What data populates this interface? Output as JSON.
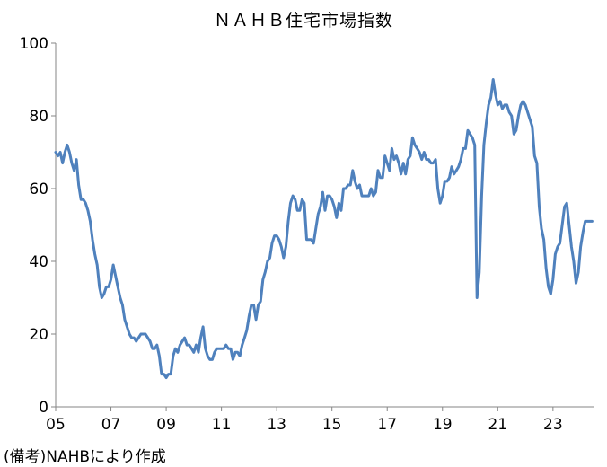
{
  "chart_data": {
    "type": "line",
    "title": "ＮＡＨＢ住宅市場指数",
    "note": "(備考)NAHBにより作成",
    "xlabel": "",
    "ylabel": "",
    "ylim": [
      0,
      100
    ],
    "yticks": [
      "0",
      "20",
      "40",
      "60",
      "80",
      "100"
    ],
    "xticks": [
      {
        "label": "05",
        "year": 2005
      },
      {
        "label": "07",
        "year": 2007
      },
      {
        "label": "09",
        "year": 2009
      },
      {
        "label": "11",
        "year": 2011
      },
      {
        "label": "13",
        "year": 2013
      },
      {
        "label": "15",
        "year": 2015
      },
      {
        "label": "17",
        "year": 2017
      },
      {
        "label": "19",
        "year": 2019
      },
      {
        "label": "21",
        "year": 2021
      },
      {
        "label": "23",
        "year": 2023
      }
    ],
    "grid": false,
    "legend": "none",
    "line_color": "#4f81bd",
    "series": [
      {
        "name": "",
        "x": [
          "2005-01",
          "2005-02",
          "2005-03",
          "2005-04",
          "2005-05",
          "2005-06",
          "2005-07",
          "2005-08",
          "2005-09",
          "2005-10",
          "2005-11",
          "2005-12",
          "2006-01",
          "2006-02",
          "2006-03",
          "2006-04",
          "2006-05",
          "2006-06",
          "2006-07",
          "2006-08",
          "2006-09",
          "2006-10",
          "2006-11",
          "2006-12",
          "2007-01",
          "2007-02",
          "2007-03",
          "2007-04",
          "2007-05",
          "2007-06",
          "2007-07",
          "2007-08",
          "2007-09",
          "2007-10",
          "2007-11",
          "2007-12",
          "2008-01",
          "2008-02",
          "2008-03",
          "2008-04",
          "2008-05",
          "2008-06",
          "2008-07",
          "2008-08",
          "2008-09",
          "2008-10",
          "2008-11",
          "2008-12",
          "2009-01",
          "2009-02",
          "2009-03",
          "2009-04",
          "2009-05",
          "2009-06",
          "2009-07",
          "2009-08",
          "2009-09",
          "2009-10",
          "2009-11",
          "2009-12",
          "2010-01",
          "2010-02",
          "2010-03",
          "2010-04",
          "2010-05",
          "2010-06",
          "2010-07",
          "2010-08",
          "2010-09",
          "2010-10",
          "2010-11",
          "2010-12",
          "2011-01",
          "2011-02",
          "2011-03",
          "2011-04",
          "2011-05",
          "2011-06",
          "2011-07",
          "2011-08",
          "2011-09",
          "2011-10",
          "2011-11",
          "2011-12",
          "2012-01",
          "2012-02",
          "2012-03",
          "2012-04",
          "2012-05",
          "2012-06",
          "2012-07",
          "2012-08",
          "2012-09",
          "2012-10",
          "2012-11",
          "2012-12",
          "2013-01",
          "2013-02",
          "2013-03",
          "2013-04",
          "2013-05",
          "2013-06",
          "2013-07",
          "2013-08",
          "2013-09",
          "2013-10",
          "2013-11",
          "2013-12",
          "2014-01",
          "2014-02",
          "2014-03",
          "2014-04",
          "2014-05",
          "2014-06",
          "2014-07",
          "2014-08",
          "2014-09",
          "2014-10",
          "2014-11",
          "2014-12",
          "2015-01",
          "2015-02",
          "2015-03",
          "2015-04",
          "2015-05",
          "2015-06",
          "2015-07",
          "2015-08",
          "2015-09",
          "2015-10",
          "2015-11",
          "2015-12",
          "2016-01",
          "2016-02",
          "2016-03",
          "2016-04",
          "2016-05",
          "2016-06",
          "2016-07",
          "2016-08",
          "2016-09",
          "2016-10",
          "2016-11",
          "2016-12",
          "2017-01",
          "2017-02",
          "2017-03",
          "2017-04",
          "2017-05",
          "2017-06",
          "2017-07",
          "2017-08",
          "2017-09",
          "2017-10",
          "2017-11",
          "2017-12",
          "2018-01",
          "2018-02",
          "2018-03",
          "2018-04",
          "2018-05",
          "2018-06",
          "2018-07",
          "2018-08",
          "2018-09",
          "2018-10",
          "2018-11",
          "2018-12",
          "2019-01",
          "2019-02",
          "2019-03",
          "2019-04",
          "2019-05",
          "2019-06",
          "2019-07",
          "2019-08",
          "2019-09",
          "2019-10",
          "2019-11",
          "2019-12",
          "2020-01",
          "2020-02",
          "2020-03",
          "2020-04",
          "2020-05",
          "2020-06",
          "2020-07",
          "2020-08",
          "2020-09",
          "2020-10",
          "2020-11",
          "2020-12",
          "2021-01",
          "2021-02",
          "2021-03",
          "2021-04",
          "2021-05",
          "2021-06",
          "2021-07",
          "2021-08",
          "2021-09",
          "2021-10",
          "2021-11",
          "2021-12",
          "2022-01",
          "2022-02",
          "2022-03",
          "2022-04",
          "2022-05",
          "2022-06",
          "2022-07",
          "2022-08",
          "2022-09",
          "2022-10",
          "2022-11",
          "2022-12",
          "2023-01",
          "2023-02",
          "2023-03",
          "2023-04",
          "2023-05",
          "2023-06",
          "2023-07",
          "2023-08",
          "2023-09",
          "2023-10",
          "2023-11",
          "2023-12",
          "2024-01",
          "2024-02",
          "2024-03",
          "2024-04",
          "2024-05",
          "2024-06"
        ],
        "values": [
          70,
          69,
          70,
          67,
          70,
          72,
          70,
          67,
          65,
          68,
          61,
          57,
          57,
          56,
          54,
          51,
          46,
          42,
          39,
          33,
          30,
          31,
          33,
          33,
          35,
          39,
          36,
          33,
          30,
          28,
          24,
          22,
          20,
          19,
          19,
          18,
          19,
          20,
          20,
          20,
          19,
          18,
          16,
          16,
          17,
          14,
          9,
          9,
          8,
          9,
          9,
          14,
          16,
          15,
          17,
          18,
          19,
          17,
          17,
          16,
          15,
          17,
          15,
          19,
          22,
          16,
          14,
          13,
          13,
          15,
          16,
          16,
          16,
          16,
          17,
          16,
          16,
          13,
          15,
          15,
          14,
          17,
          19,
          21,
          25,
          28,
          28,
          24,
          28,
          29,
          35,
          37,
          40,
          41,
          45,
          47,
          47,
          46,
          44,
          41,
          44,
          51,
          56,
          58,
          57,
          54,
          54,
          57,
          56,
          46,
          46,
          46,
          45,
          49,
          53,
          55,
          59,
          54,
          58,
          58,
          57,
          55,
          52,
          56,
          54,
          60,
          60,
          61,
          61,
          65,
          62,
          60,
          61,
          58,
          58,
          58,
          58,
          60,
          58,
          59,
          65,
          63,
          63,
          69,
          67,
          65,
          71,
          68,
          69,
          67,
          64,
          67,
          64,
          68,
          69,
          74,
          72,
          71,
          70,
          68,
          70,
          68,
          68,
          67,
          67,
          68,
          60,
          56,
          58,
          62,
          62,
          63,
          66,
          64,
          65,
          66,
          68,
          71,
          71,
          76,
          75,
          74,
          72,
          30,
          37,
          58,
          72,
          78,
          83,
          85,
          90,
          86,
          83,
          84,
          82,
          83,
          83,
          81,
          80,
          75,
          76,
          80,
          83,
          84,
          83,
          81,
          79,
          77,
          69,
          67,
          55,
          49,
          46,
          38,
          33,
          31,
          35,
          42,
          44,
          45,
          50,
          55,
          56,
          50,
          44,
          40,
          34,
          37,
          44,
          48,
          51,
          51,
          51,
          51
        ]
      }
    ]
  }
}
